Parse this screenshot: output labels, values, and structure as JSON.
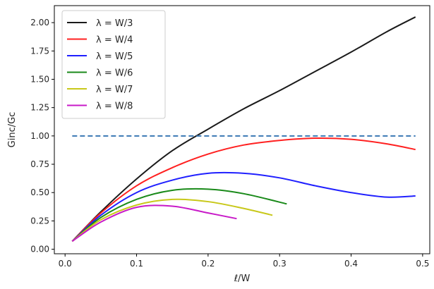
{
  "chart_data": {
    "type": "line",
    "title": "",
    "xlabel": "ℓ/W",
    "ylabel": "Ginc/Gc",
    "xlim": [
      -0.015,
      0.51
    ],
    "ylim": [
      -0.04,
      2.15
    ],
    "x_ticks": [
      "0.0",
      "0.1",
      "0.2",
      "0.3",
      "0.4",
      "0.5"
    ],
    "y_ticks": [
      "0.00",
      "0.25",
      "0.50",
      "0.75",
      "1.00",
      "1.25",
      "1.50",
      "1.75",
      "2.00"
    ],
    "grid": false,
    "legend_position": "top-left",
    "series": [
      {
        "name": "λ = W/3",
        "color": "#1a1a1a",
        "x": [
          0.01,
          0.05,
          0.1,
          0.15,
          0.2,
          0.25,
          0.3,
          0.35,
          0.4,
          0.45,
          0.49
        ],
        "y": [
          0.07,
          0.33,
          0.62,
          0.87,
          1.06,
          1.24,
          1.4,
          1.57,
          1.74,
          1.92,
          2.05
        ]
      },
      {
        "name": "λ = W/4",
        "color": "#ff2020",
        "x": [
          0.01,
          0.05,
          0.1,
          0.15,
          0.2,
          0.25,
          0.3,
          0.35,
          0.4,
          0.45,
          0.49
        ],
        "y": [
          0.07,
          0.32,
          0.56,
          0.72,
          0.84,
          0.92,
          0.96,
          0.98,
          0.97,
          0.93,
          0.88
        ]
      },
      {
        "name": "λ = W/5",
        "color": "#2020ff",
        "x": [
          0.01,
          0.05,
          0.1,
          0.15,
          0.2,
          0.25,
          0.3,
          0.35,
          0.4,
          0.45,
          0.49
        ],
        "y": [
          0.07,
          0.3,
          0.5,
          0.61,
          0.67,
          0.67,
          0.63,
          0.56,
          0.5,
          0.46,
          0.47
        ]
      },
      {
        "name": "λ = W/6",
        "color": "#1a8a1a",
        "x": [
          0.01,
          0.05,
          0.1,
          0.15,
          0.2,
          0.25,
          0.31
        ],
        "y": [
          0.07,
          0.28,
          0.44,
          0.52,
          0.53,
          0.49,
          0.4
        ]
      },
      {
        "name": "λ = W/7",
        "color": "#c8c81a",
        "x": [
          0.01,
          0.05,
          0.1,
          0.15,
          0.2,
          0.25,
          0.29
        ],
        "y": [
          0.07,
          0.26,
          0.39,
          0.44,
          0.42,
          0.36,
          0.3
        ]
      },
      {
        "name": "λ = W/8",
        "color": "#c81ac8",
        "x": [
          0.01,
          0.05,
          0.1,
          0.15,
          0.2,
          0.24
        ],
        "y": [
          0.07,
          0.24,
          0.37,
          0.38,
          0.32,
          0.27
        ]
      }
    ],
    "reference_line": {
      "y": 1.0,
      "x_range": [
        0.01,
        0.49
      ],
      "style": "dashed",
      "color": "#3a78b4"
    }
  }
}
